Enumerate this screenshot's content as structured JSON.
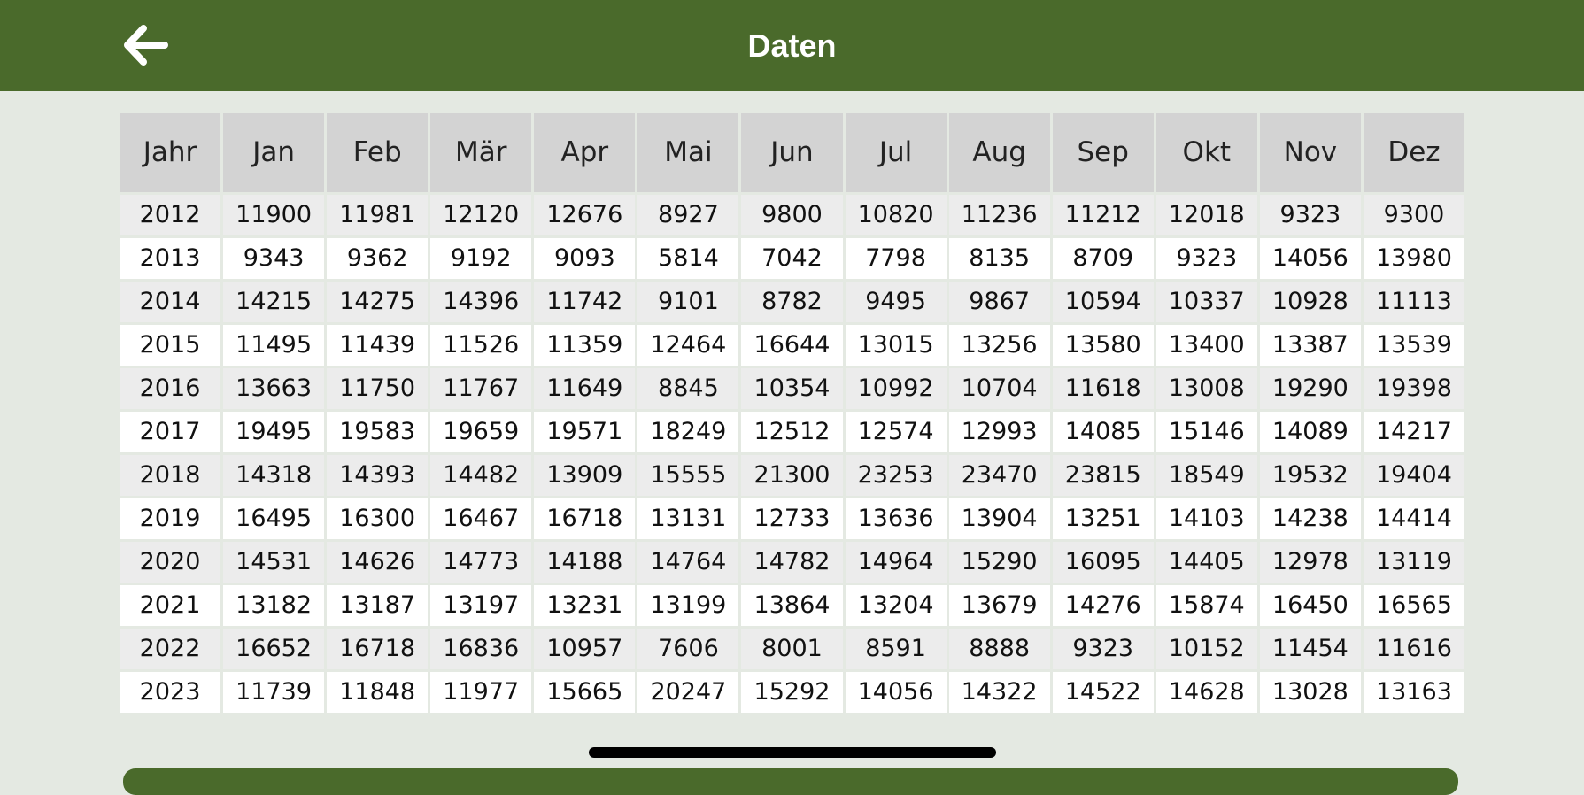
{
  "header": {
    "title": "Daten"
  },
  "table": {
    "columns": [
      "Jahr",
      "Jan",
      "Feb",
      "Mär",
      "Apr",
      "Mai",
      "Jun",
      "Jul",
      "Aug",
      "Sep",
      "Okt",
      "Nov",
      "Dez"
    ],
    "rows": [
      [
        2012,
        11900,
        11981,
        12120,
        12676,
        8927,
        9800,
        10820,
        11236,
        11212,
        12018,
        9323,
        9300
      ],
      [
        2013,
        9343,
        9362,
        9192,
        9093,
        5814,
        7042,
        7798,
        8135,
        8709,
        9323,
        14056,
        13980
      ],
      [
        2014,
        14215,
        14275,
        14396,
        11742,
        9101,
        8782,
        9495,
        9867,
        10594,
        10337,
        10928,
        11113
      ],
      [
        2015,
        11495,
        11439,
        11526,
        11359,
        12464,
        16644,
        13015,
        13256,
        13580,
        13400,
        13387,
        13539
      ],
      [
        2016,
        13663,
        11750,
        11767,
        11649,
        8845,
        10354,
        10992,
        10704,
        11618,
        13008,
        19290,
        19398
      ],
      [
        2017,
        19495,
        19583,
        19659,
        19571,
        18249,
        12512,
        12574,
        12993,
        14085,
        15146,
        14089,
        14217
      ],
      [
        2018,
        14318,
        14393,
        14482,
        13909,
        15555,
        21300,
        23253,
        23470,
        23815,
        18549,
        19532,
        19404
      ],
      [
        2019,
        16495,
        16300,
        16467,
        16718,
        13131,
        12733,
        13636,
        13904,
        13251,
        14103,
        14238,
        14414
      ],
      [
        2020,
        14531,
        14626,
        14773,
        14188,
        14764,
        14782,
        14964,
        15290,
        16095,
        14405,
        12978,
        13119
      ],
      [
        2021,
        13182,
        13187,
        13197,
        13231,
        13199,
        13864,
        13204,
        13679,
        14276,
        15874,
        16450,
        16565
      ],
      [
        2022,
        16652,
        16718,
        16836,
        10957,
        7606,
        8001,
        8591,
        8888,
        9323,
        10152,
        11454,
        11616
      ],
      [
        2023,
        11739,
        11848,
        11977,
        15665,
        20247,
        15292,
        14056,
        14322,
        14522,
        14628,
        13028,
        13163
      ]
    ]
  }
}
